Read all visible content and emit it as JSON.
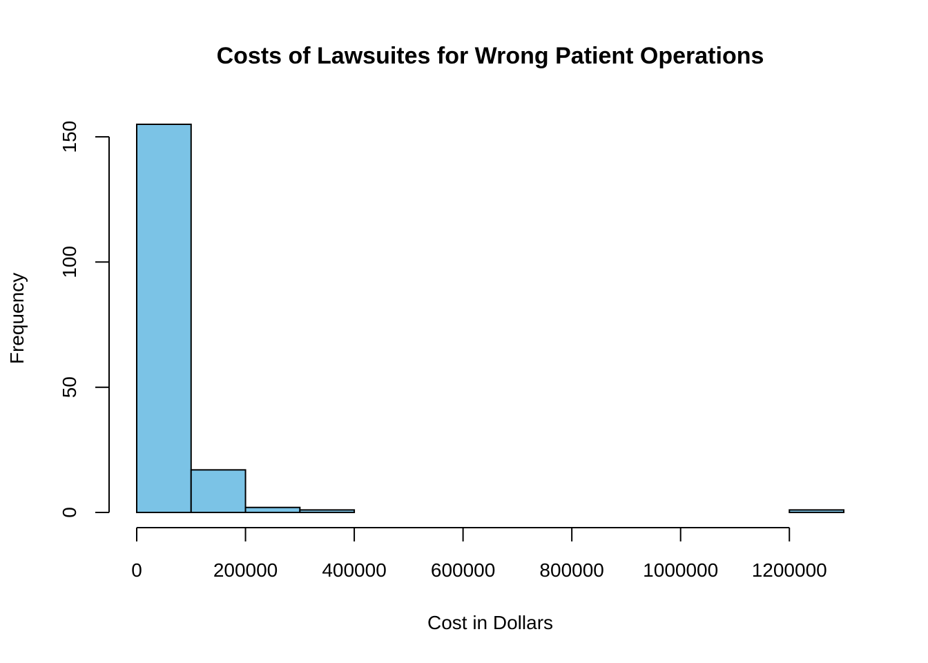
{
  "chart_data": {
    "type": "bar",
    "title": "Costs of Lawsuites for Wrong Patient Operations",
    "xlabel": "Cost in Dollars",
    "ylabel": "Frequency",
    "bin_width": 100000,
    "bins": [
      {
        "start": 0,
        "end": 100000,
        "count": 155
      },
      {
        "start": 100000,
        "end": 200000,
        "count": 17
      },
      {
        "start": 200000,
        "end": 300000,
        "count": 2
      },
      {
        "start": 300000,
        "end": 400000,
        "count": 1
      },
      {
        "start": 400000,
        "end": 500000,
        "count": 0
      },
      {
        "start": 500000,
        "end": 600000,
        "count": 0
      },
      {
        "start": 600000,
        "end": 700000,
        "count": 0
      },
      {
        "start": 700000,
        "end": 800000,
        "count": 0
      },
      {
        "start": 800000,
        "end": 900000,
        "count": 0
      },
      {
        "start": 900000,
        "end": 1000000,
        "count": 0
      },
      {
        "start": 1000000,
        "end": 1100000,
        "count": 0
      },
      {
        "start": 1100000,
        "end": 1200000,
        "count": 0
      },
      {
        "start": 1200000,
        "end": 1300000,
        "count": 1
      }
    ],
    "xlim": [
      0,
      1300000
    ],
    "ylim": [
      0,
      155
    ],
    "x_ticks": [
      0,
      200000,
      400000,
      600000,
      800000,
      1000000,
      1200000
    ],
    "x_tick_labels": [
      "0",
      "200000",
      "400000",
      "600000",
      "800000",
      "1000000",
      "1200000"
    ],
    "y_ticks": [
      0,
      50,
      100,
      150
    ],
    "y_tick_labels": [
      "0",
      "50",
      "100",
      "150"
    ],
    "bar_color": "#7bc3e6",
    "grid": false,
    "legend": "none"
  }
}
